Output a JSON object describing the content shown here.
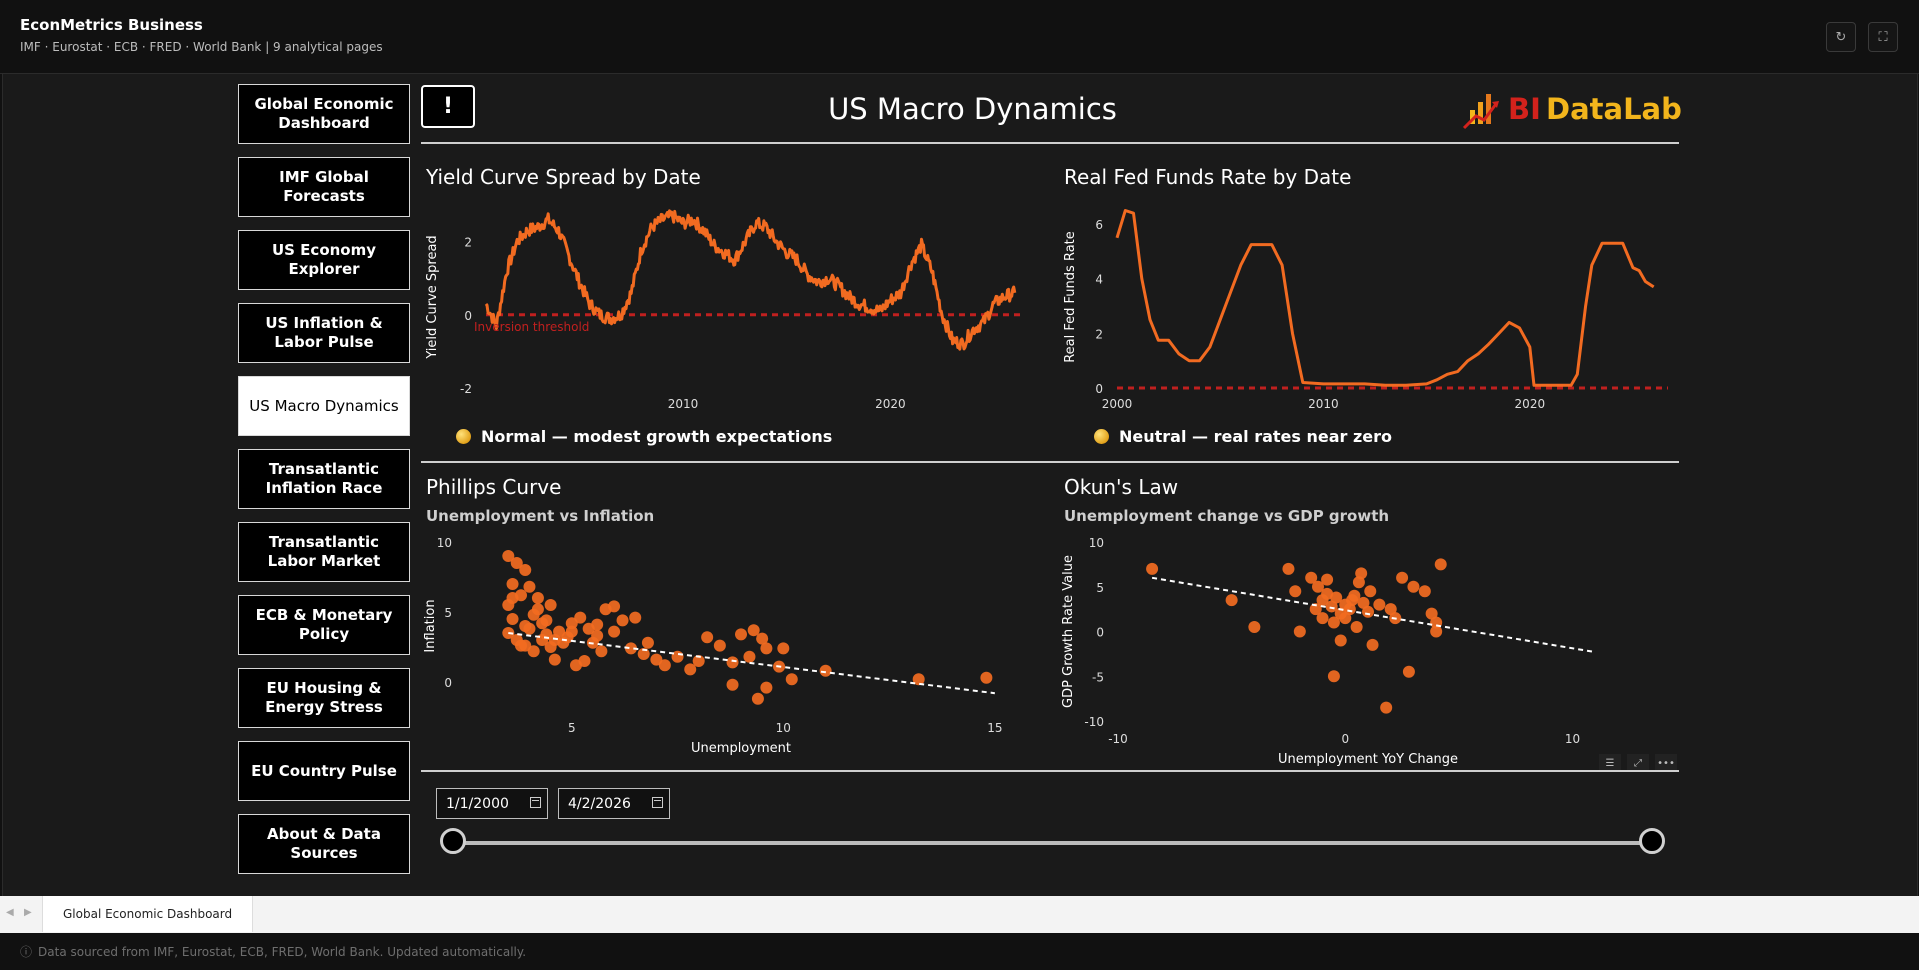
{
  "app": {
    "title": "EconMetrics Business",
    "subtitle": "IMF · Eurostat · ECB · FRED · World Bank  |  9 analytical pages",
    "refresh_icon": "refresh-icon",
    "fullscreen_icon": "fullscreen-icon"
  },
  "nav": {
    "items": [
      {
        "label": "Global Economic Dashboard",
        "active": false
      },
      {
        "label": "IMF Global Forecasts",
        "active": false
      },
      {
        "label": "US Economy Explorer",
        "active": false
      },
      {
        "label": "US Inflation & Labor Pulse",
        "active": false
      },
      {
        "label": "US Macro Dynamics",
        "active": true
      },
      {
        "label": "Transatlantic Inflation Race",
        "active": false
      },
      {
        "label": "Transatlantic Labor Market",
        "active": false
      },
      {
        "label": "ECB & Monetary Policy",
        "active": false
      },
      {
        "label": "EU Housing & Energy Stress",
        "active": false
      },
      {
        "label": "EU Country Pulse",
        "active": false
      },
      {
        "label": "About & Data Sources",
        "active": false
      }
    ]
  },
  "header": {
    "alert_label": "!",
    "title": "US Macro Dynamics",
    "logo_text_a": "BI",
    "logo_text_b": "DataLab"
  },
  "yield_curve": {
    "title": "Yield Curve Spread by Date",
    "ylabel": "Yield Curve Spread",
    "annotation": "Inversion threshold",
    "status": "Normal — modest growth expectations"
  },
  "fed_funds": {
    "title": "Real Fed Funds Rate by Date",
    "ylabel": "Real Fed Funds Rate",
    "status": "Neutral — real rates near zero"
  },
  "phillips": {
    "title": "Phillips Curve",
    "subtitle": "Unemployment vs Inflation",
    "xlabel": "Unemployment",
    "ylabel": "Inflation"
  },
  "okun": {
    "title": "Okun's Law",
    "subtitle": "Unemployment change vs GDP growth",
    "xlabel": "Unemployment YoY Change",
    "ylabel": "GDP Growth Rate Value"
  },
  "filters": {
    "start_date": "1/1/2000",
    "end_date": "4/2/2026",
    "slider_start": 0,
    "slider_end": 1
  },
  "tabs": [
    {
      "label": "Global Economic Dashboard"
    }
  ],
  "footer": {
    "text": "Data sourced from IMF, Eurostat, ECB, FRED, World Bank. Updated automatically."
  },
  "colors": {
    "accent": "#f26b21",
    "threshold": "#c0201f",
    "logo_red": "#d3221c",
    "logo_yellow": "#f2b51c"
  },
  "chart_data": [
    {
      "type": "line",
      "title": "Yield Curve Spread by Date",
      "ylabel": "Yield Curve Spread",
      "xticks": [
        "2010",
        "2020"
      ],
      "yticks": [
        -2,
        0,
        2
      ],
      "xlim": [
        2000.5,
        2026.3
      ],
      "ylim": [
        -2,
        3
      ],
      "threshold": 0,
      "series": [
        {
          "x": [
            2000.5,
            2001.0,
            2001.5,
            2002.0,
            2002.5,
            2003.0,
            2003.5,
            2004.0,
            2004.5,
            2005.0,
            2005.5,
            2006.0,
            2006.5,
            2007.0,
            2007.5,
            2008.0,
            2008.5,
            2009.0,
            2009.5,
            2010.0,
            2010.5,
            2011.0,
            2011.5,
            2012.0,
            2012.5,
            2013.0,
            2013.5,
            2014.0,
            2014.5,
            2015.0,
            2015.5,
            2016.0,
            2016.5,
            2017.0,
            2017.5,
            2018.0,
            2018.5,
            2019.0,
            2019.5,
            2020.0,
            2020.5,
            2021.0,
            2021.5,
            2022.0,
            2022.5,
            2023.0,
            2023.5,
            2024.0,
            2024.5,
            2025.0,
            2025.5,
            2026.0
          ],
          "y": [
            0.3,
            -0.3,
            1.2,
            2.0,
            2.3,
            2.4,
            2.6,
            2.3,
            1.6,
            0.9,
            0.3,
            0.0,
            -0.1,
            0.0,
            0.6,
            1.8,
            2.4,
            2.6,
            2.7,
            2.5,
            2.6,
            2.3,
            1.9,
            1.7,
            1.5,
            2.0,
            2.5,
            2.4,
            2.0,
            1.7,
            1.5,
            1.1,
            0.9,
            1.0,
            0.8,
            0.5,
            0.3,
            0.2,
            0.1,
            0.4,
            0.6,
            1.4,
            1.9,
            1.2,
            0.0,
            -0.7,
            -0.8,
            -0.4,
            -0.2,
            0.3,
            0.5,
            0.6
          ]
        }
      ]
    },
    {
      "type": "line",
      "title": "Real Fed Funds Rate by Date",
      "ylabel": "Real Fed Funds Rate",
      "xticks": [
        "2000",
        "2010",
        "2020"
      ],
      "yticks": [
        0,
        2,
        4,
        6
      ],
      "xlim": [
        2000,
        2026.5
      ],
      "ylim": [
        0,
        6.7
      ],
      "threshold": 0,
      "series": [
        {
          "x": [
            2000.0,
            2000.4,
            2000.8,
            2001.2,
            2001.6,
            2002.0,
            2002.5,
            2003.0,
            2003.5,
            2004.0,
            2004.5,
            2005.0,
            2005.5,
            2006.0,
            2006.5,
            2007.0,
            2007.5,
            2008.0,
            2008.5,
            2009.0,
            2010.0,
            2011.0,
            2012.0,
            2013.0,
            2014.0,
            2015.0,
            2015.5,
            2016.0,
            2016.5,
            2017.0,
            2017.5,
            2018.0,
            2018.5,
            2019.0,
            2019.5,
            2020.0,
            2020.2,
            2021.0,
            2022.0,
            2022.3,
            2022.7,
            2023.0,
            2023.5,
            2024.0,
            2024.5,
            2025.0,
            2025.3,
            2025.6,
            2026.0
          ],
          "y": [
            5.5,
            6.5,
            6.4,
            4.0,
            2.5,
            1.75,
            1.75,
            1.25,
            1.0,
            1.0,
            1.5,
            2.5,
            3.5,
            4.5,
            5.25,
            5.25,
            5.25,
            4.5,
            2.0,
            0.2,
            0.15,
            0.15,
            0.15,
            0.1,
            0.1,
            0.15,
            0.3,
            0.5,
            0.6,
            1.0,
            1.25,
            1.6,
            2.0,
            2.4,
            2.2,
            1.5,
            0.1,
            0.1,
            0.1,
            0.5,
            3.0,
            4.5,
            5.3,
            5.3,
            5.3,
            4.4,
            4.3,
            3.9,
            3.7
          ]
        }
      ]
    },
    {
      "type": "scatter",
      "title": "Phillips Curve",
      "subtitle": "Unemployment vs Inflation",
      "xlabel": "Unemployment",
      "ylabel": "Inflation",
      "xticks": [
        5,
        10,
        15
      ],
      "yticks": [
        0,
        5,
        10
      ],
      "xlim": [
        2.5,
        15.5
      ],
      "ylim": [
        -2,
        10
      ],
      "trend": [
        [
          3.5,
          3.5
        ],
        [
          15.0,
          -0.8
        ]
      ],
      "points": [
        [
          3.5,
          9
        ],
        [
          3.7,
          8.5
        ],
        [
          3.9,
          8.0
        ],
        [
          3.6,
          7.0
        ],
        [
          4.0,
          6.8
        ],
        [
          3.8,
          6.2
        ],
        [
          3.5,
          5.5
        ],
        [
          4.2,
          6.0
        ],
        [
          4.5,
          5.5
        ],
        [
          3.6,
          4.5
        ],
        [
          3.9,
          4.0
        ],
        [
          4.1,
          4.8
        ],
        [
          4.3,
          4.2
        ],
        [
          3.5,
          3.5
        ],
        [
          3.7,
          3.0
        ],
        [
          3.9,
          2.6
        ],
        [
          4.1,
          2.2
        ],
        [
          4.3,
          3.0
        ],
        [
          4.5,
          2.5
        ],
        [
          4.7,
          3.6
        ],
        [
          4.9,
          3.2
        ],
        [
          5.0,
          4.2
        ],
        [
          5.2,
          4.6
        ],
        [
          5.4,
          3.8
        ],
        [
          5.6,
          4.1
        ],
        [
          5.8,
          5.2
        ],
        [
          6.0,
          5.4
        ],
        [
          6.2,
          4.4
        ],
        [
          5.5,
          2.8
        ],
        [
          5.7,
          2.2
        ],
        [
          5.3,
          1.5
        ],
        [
          5.1,
          1.2
        ],
        [
          6.4,
          2.4
        ],
        [
          6.7,
          2.0
        ],
        [
          7.0,
          1.6
        ],
        [
          7.5,
          1.8
        ],
        [
          8.0,
          1.5
        ],
        [
          8.5,
          2.6
        ],
        [
          9.0,
          3.4
        ],
        [
          9.3,
          3.7
        ],
        [
          9.5,
          3.1
        ],
        [
          9.6,
          2.4
        ],
        [
          9.2,
          1.8
        ],
        [
          8.8,
          1.4
        ],
        [
          9.9,
          1.1
        ],
        [
          10.0,
          2.4
        ],
        [
          9.6,
          -0.4
        ],
        [
          9.4,
          -1.2
        ],
        [
          8.8,
          -0.2
        ],
        [
          10.2,
          0.2
        ],
        [
          11.0,
          0.8
        ],
        [
          13.2,
          0.2
        ],
        [
          14.8,
          0.3
        ],
        [
          4.6,
          1.6
        ],
        [
          4.8,
          2.8
        ],
        [
          5.0,
          3.6
        ],
        [
          3.8,
          2.6
        ],
        [
          4.0,
          3.8
        ],
        [
          4.4,
          4.4
        ],
        [
          6.8,
          2.8
        ],
        [
          7.2,
          1.2
        ],
        [
          7.8,
          0.9
        ],
        [
          8.2,
          3.2
        ],
        [
          4.4,
          3.4
        ],
        [
          4.6,
          3.0
        ],
        [
          3.6,
          6.0
        ],
        [
          4.2,
          5.2
        ],
        [
          5.6,
          3.3
        ],
        [
          6.0,
          3.6
        ],
        [
          6.5,
          4.6
        ]
      ]
    },
    {
      "type": "scatter",
      "title": "Okun's Law",
      "subtitle": "Unemployment change vs GDP growth",
      "xlabel": "Unemployment YoY Change",
      "ylabel": "GDP Growth Rate Value",
      "xticks": [
        -10,
        0,
        10
      ],
      "yticks": [
        -10,
        -5,
        0,
        5,
        10
      ],
      "xlim": [
        -10,
        12
      ],
      "ylim": [
        -10,
        10
      ],
      "trend": [
        [
          -8.5,
          6.0
        ],
        [
          11.0,
          -2.3
        ]
      ],
      "points": [
        [
          -8.5,
          7.0
        ],
        [
          -5.0,
          3.5
        ],
        [
          -4.0,
          0.5
        ],
        [
          -2.5,
          7.0
        ],
        [
          -2.2,
          4.5
        ],
        [
          -2.0,
          0.0
        ],
        [
          -1.5,
          6.0
        ],
        [
          -1.2,
          5.0
        ],
        [
          -1.0,
          3.5
        ],
        [
          -0.8,
          4.2
        ],
        [
          -0.6,
          2.8
        ],
        [
          -0.4,
          3.8
        ],
        [
          -0.2,
          2.0
        ],
        [
          0.0,
          3.0
        ],
        [
          0.2,
          2.5
        ],
        [
          0.4,
          4.0
        ],
        [
          0.6,
          5.5
        ],
        [
          0.8,
          3.2
        ],
        [
          1.0,
          2.2
        ],
        [
          -0.5,
          1.0
        ],
        [
          -0.2,
          -1.0
        ],
        [
          0.5,
          0.5
        ],
        [
          1.2,
          -1.5
        ],
        [
          1.5,
          3.0
        ],
        [
          2.0,
          2.5
        ],
        [
          2.5,
          6.0
        ],
        [
          3.0,
          5.0
        ],
        [
          3.5,
          4.5
        ],
        [
          3.8,
          2.0
        ],
        [
          4.0,
          1.0
        ],
        [
          4.2,
          7.5
        ],
        [
          4.0,
          0.0
        ],
        [
          -0.5,
          -5.0
        ],
        [
          1.8,
          -8.5
        ],
        [
          2.8,
          -4.5
        ],
        [
          -1.0,
          1.5
        ],
        [
          0.0,
          1.5
        ],
        [
          0.7,
          6.5
        ],
        [
          -0.8,
          5.8
        ],
        [
          0.3,
          3.5
        ],
        [
          1.1,
          4.5
        ],
        [
          -1.3,
          2.5
        ],
        [
          2.2,
          1.5
        ]
      ]
    }
  ]
}
